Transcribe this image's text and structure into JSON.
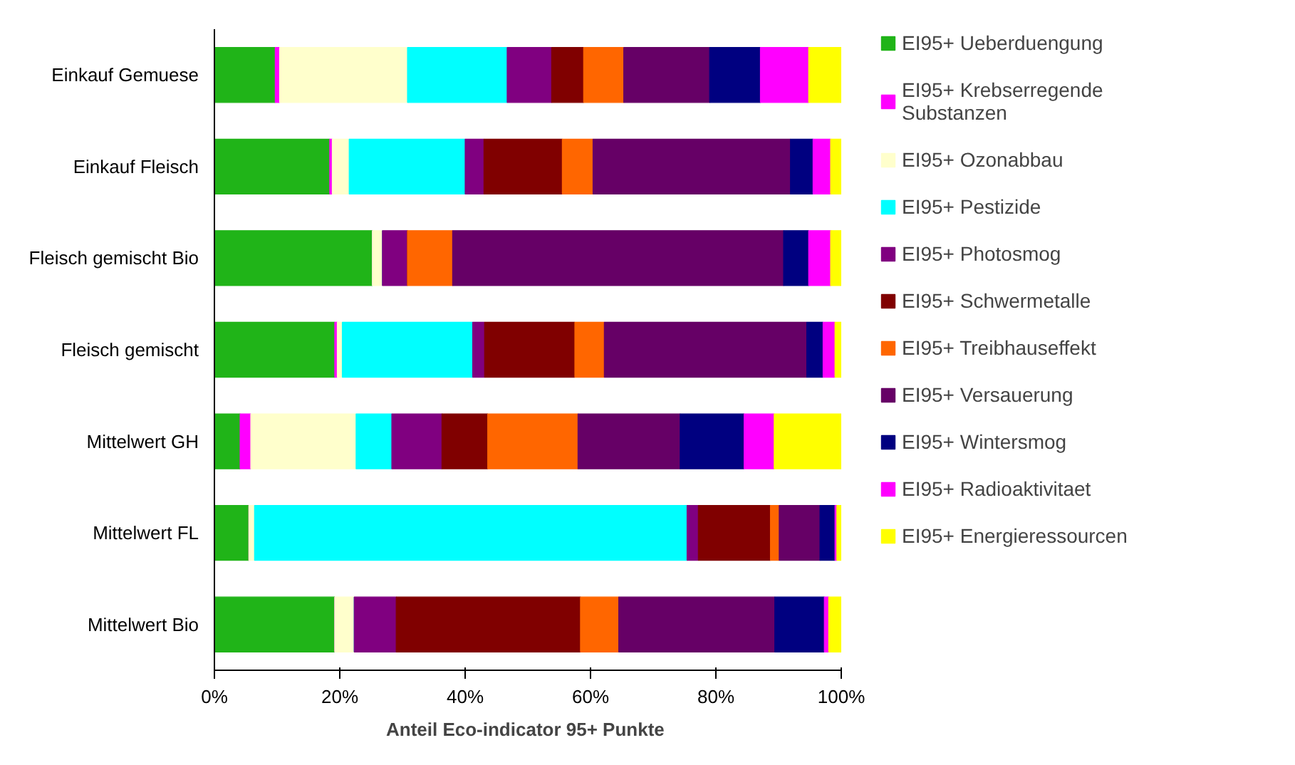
{
  "chart_data": {
    "type": "bar",
    "orientation": "horizontal",
    "stacked": true,
    "categories": [
      "Einkauf Gemuese",
      "Einkauf Fleisch",
      "Fleisch gemischt Bio",
      "Fleisch gemischt",
      "Mittelwert GH",
      "Mittelwert FL",
      "Mittelwert Bio"
    ],
    "xlabel": "Anteil  Eco-indicator 95+ Punkte",
    "xlim": [
      0,
      100
    ],
    "xticks": [
      {
        "value": 0,
        "label": "0%"
      },
      {
        "value": 20,
        "label": "20%"
      },
      {
        "value": 40,
        "label": "40%"
      },
      {
        "value": 60,
        "label": "60%"
      },
      {
        "value": 80,
        "label": "80%"
      },
      {
        "value": 100,
        "label": "100%"
      }
    ],
    "grid": false,
    "legend": "right",
    "series": [
      {
        "name": "EI95+ Ueberduengung",
        "color": "#20b418",
        "values": [
          9.7,
          18.4,
          25.2,
          19.2,
          4.1,
          5.5,
          19.2
        ]
      },
      {
        "name": "EI95+ Krebserregende Substanzen",
        "color": "#ff00ff",
        "values": [
          0.7,
          0.4,
          0,
          0.4,
          1.7,
          0,
          0
        ]
      },
      {
        "name": "EI95+ Ozonabbau",
        "color": "#ffffcc",
        "values": [
          20.4,
          2.7,
          1.6,
          0.8,
          16.8,
          0.9,
          3.1
        ]
      },
      {
        "name": "EI95+ Pestizide",
        "color": "#00ffff",
        "values": [
          15.9,
          18.5,
          0,
          20.8,
          5.7,
          69.0,
          0
        ]
      },
      {
        "name": "EI95+ Photosmog",
        "color": "#800080",
        "values": [
          7.1,
          3.0,
          4.0,
          1.9,
          8.0,
          1.8,
          6.7
        ]
      },
      {
        "name": "EI95+ Schwermetalle",
        "color": "#800000",
        "values": [
          5.1,
          12.5,
          0,
          14.4,
          7.3,
          11.5,
          29.4
        ]
      },
      {
        "name": "EI95+ Treibhauseffekt",
        "color": "#ff6600",
        "values": [
          6.4,
          4.9,
          7.2,
          4.7,
          14.4,
          1.4,
          6.1
        ]
      },
      {
        "name": "EI95+ Versauerung",
        "color": "#660066",
        "values": [
          13.7,
          31.5,
          52.8,
          32.3,
          16.3,
          6.5,
          24.9
        ]
      },
      {
        "name": "EI95+ Wintersmog",
        "color": "#000080",
        "values": [
          8.1,
          3.6,
          4.0,
          2.6,
          10.2,
          2.4,
          7.9
        ]
      },
      {
        "name": "EI95+ Radioaktivitaet",
        "color": "#ff00ff",
        "values": [
          7.7,
          2.8,
          3.5,
          1.9,
          4.8,
          0.3,
          0.7
        ]
      },
      {
        "name": "EI95+ Energieressourcen",
        "color": "#ffff00",
        "values": [
          5.2,
          1.7,
          1.7,
          1.0,
          10.7,
          0.7,
          2.0
        ]
      }
    ]
  }
}
